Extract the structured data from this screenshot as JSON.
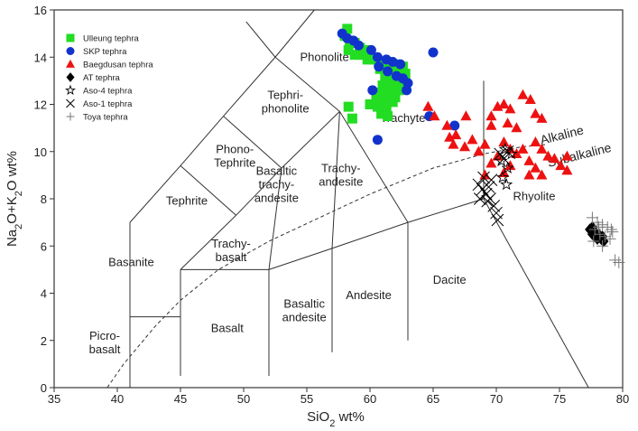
{
  "chart_data": {
    "type": "scatter",
    "title": "",
    "xlabel": "SiO2 wt%",
    "ylabel": "Na2O+K2O wt%",
    "xlim": [
      35,
      80
    ],
    "ylim": [
      0,
      16
    ],
    "xticks": [
      35,
      40,
      45,
      50,
      55,
      60,
      65,
      70,
      75,
      80
    ],
    "yticks": [
      0,
      2,
      4,
      6,
      8,
      10,
      12,
      14,
      16
    ],
    "grid": false,
    "legend_position": "top-left",
    "tas_fields": [
      {
        "name": "picrobasalt",
        "lines": [
          "Picro-",
          "basalt"
        ],
        "x": 39.0,
        "y": 1.9
      },
      {
        "name": "basalt",
        "lines": [
          "Basalt"
        ],
        "x": 48.7,
        "y": 2.5
      },
      {
        "name": "basaltic-andesite",
        "lines": [
          "Basaltic",
          "andesite"
        ],
        "x": 54.8,
        "y": 3.25
      },
      {
        "name": "andesite",
        "lines": [
          "Andesite"
        ],
        "x": 59.9,
        "y": 3.9
      },
      {
        "name": "dacite",
        "lines": [
          "Dacite"
        ],
        "x": 66.3,
        "y": 4.55
      },
      {
        "name": "rhyolite",
        "lines": [
          "Rhyolite"
        ],
        "x": 73.0,
        "y": 8.1
      },
      {
        "name": "basanite",
        "lines": [
          "Basanite"
        ],
        "x": 41.1,
        "y": 5.3
      },
      {
        "name": "trachybasalt",
        "lines": [
          "Trachy-",
          "basalt"
        ],
        "x": 49.0,
        "y": 5.8
      },
      {
        "name": "basaltic-trachyandesite",
        "lines": [
          "Basaltic",
          "trachy-",
          "andesite"
        ],
        "x": 52.6,
        "y": 8.6
      },
      {
        "name": "trachyandesite",
        "lines": [
          "Trachy-",
          "andesite"
        ],
        "x": 57.7,
        "y": 9.0
      },
      {
        "name": "tephrite",
        "lines": [
          "Tephrite"
        ],
        "x": 45.5,
        "y": 7.9
      },
      {
        "name": "phonotephrite",
        "lines": [
          "Phono-",
          "Tephrite"
        ],
        "x": 49.3,
        "y": 9.8
      },
      {
        "name": "tephriphonolite",
        "lines": [
          "Tephri-",
          "phonolite"
        ],
        "x": 53.3,
        "y": 12.1
      },
      {
        "name": "phonolite",
        "lines": [
          "Phonolite"
        ],
        "x": 56.4,
        "y": 14.0
      },
      {
        "name": "trachyte",
        "lines": [
          "Trachyte"
        ],
        "x": 62.6,
        "y": 11.4
      }
    ],
    "boundary_label_alkaline": "Alkaline",
    "boundary_label_subalkaline": "Subalkaline",
    "series": [
      {
        "name": "Ulleung tephra",
        "marker": "square",
        "color": "#22dd22",
        "points": [
          [
            58.2,
            15.2
          ],
          [
            58.0,
            14.9
          ],
          [
            58.4,
            14.7
          ],
          [
            58.8,
            14.6
          ],
          [
            59.2,
            14.4
          ],
          [
            59.6,
            14.3
          ],
          [
            58.3,
            14.3
          ],
          [
            58.8,
            14.1
          ],
          [
            59.4,
            14.1
          ],
          [
            59.8,
            13.9
          ],
          [
            60.2,
            13.9
          ],
          [
            60.7,
            13.8
          ],
          [
            61.3,
            13.8
          ],
          [
            61.9,
            13.7
          ],
          [
            62.3,
            13.6
          ],
          [
            62.6,
            13.6
          ],
          [
            60.8,
            13.5
          ],
          [
            61.5,
            13.4
          ],
          [
            62.2,
            13.3
          ],
          [
            62.8,
            13.3
          ],
          [
            61.2,
            13.1
          ],
          [
            61.8,
            13.0
          ],
          [
            62.5,
            13.0
          ],
          [
            61.0,
            12.8
          ],
          [
            61.6,
            12.7
          ],
          [
            62.3,
            12.6
          ],
          [
            60.8,
            12.5
          ],
          [
            61.4,
            12.4
          ],
          [
            62.0,
            12.3
          ],
          [
            60.5,
            12.2
          ],
          [
            61.1,
            12.1
          ],
          [
            61.8,
            12.1
          ],
          [
            60.0,
            12.0
          ],
          [
            60.6,
            11.9
          ],
          [
            61.3,
            11.8
          ],
          [
            60.9,
            11.6
          ],
          [
            61.4,
            11.5
          ],
          [
            58.3,
            11.9
          ],
          [
            58.6,
            11.4
          ]
        ]
      },
      {
        "name": "SKP tephra",
        "marker": "circle",
        "color": "#1133cc",
        "points": [
          [
            57.8,
            15.0
          ],
          [
            58.2,
            14.8
          ],
          [
            58.7,
            14.7
          ],
          [
            59.1,
            14.5
          ],
          [
            60.1,
            14.3
          ],
          [
            60.6,
            14.0
          ],
          [
            61.3,
            13.9
          ],
          [
            61.8,
            13.8
          ],
          [
            62.4,
            13.7
          ],
          [
            60.7,
            13.6
          ],
          [
            61.4,
            13.4
          ],
          [
            62.1,
            13.2
          ],
          [
            62.6,
            13.1
          ],
          [
            63.0,
            12.9
          ],
          [
            62.9,
            12.6
          ],
          [
            60.2,
            12.6
          ],
          [
            65.0,
            14.2
          ],
          [
            64.7,
            11.5
          ],
          [
            66.7,
            11.1
          ],
          [
            60.6,
            10.5
          ]
        ]
      },
      {
        "name": "Baegdusan tephra",
        "marker": "triangle",
        "color": "#ee1111",
        "points": [
          [
            64.6,
            11.9
          ],
          [
            65.1,
            11.5
          ],
          [
            66.1,
            11.1
          ],
          [
            66.8,
            10.7
          ],
          [
            67.5,
            10.2
          ],
          [
            66.3,
            10.6
          ],
          [
            66.6,
            10.3
          ],
          [
            67.6,
            11.5
          ],
          [
            68.1,
            10.5
          ],
          [
            68.6,
            10.0
          ],
          [
            69.1,
            10.3
          ],
          [
            69.6,
            11.5
          ],
          [
            70.1,
            11.9
          ],
          [
            70.6,
            12.0
          ],
          [
            71.1,
            11.8
          ],
          [
            71.6,
            11.0
          ],
          [
            72.1,
            12.4
          ],
          [
            72.7,
            12.2
          ],
          [
            73.1,
            11.6
          ],
          [
            73.6,
            11.4
          ],
          [
            73.1,
            10.4
          ],
          [
            73.6,
            10.1
          ],
          [
            74.1,
            9.8
          ],
          [
            74.6,
            9.7
          ],
          [
            75.1,
            9.4
          ],
          [
            75.6,
            9.2
          ],
          [
            72.6,
            9.6
          ],
          [
            73.1,
            9.3
          ],
          [
            73.6,
            9.0
          ],
          [
            70.6,
            10.4
          ],
          [
            71.1,
            10.1
          ],
          [
            71.6,
            9.9
          ],
          [
            72.1,
            10.1
          ],
          [
            70.1,
            9.8
          ],
          [
            69.6,
            9.5
          ],
          [
            69.1,
            9.0
          ],
          [
            70.6,
            9.1
          ],
          [
            71.1,
            9.4
          ],
          [
            72.6,
            9.0
          ],
          [
            75.6,
            9.8
          ],
          [
            70.9,
            11.2
          ],
          [
            69.6,
            11.1
          ]
        ]
      },
      {
        "name": "AT tephra",
        "marker": "diamond",
        "color": "#000000",
        "points": [
          [
            77.4,
            6.7
          ],
          [
            77.6,
            6.5
          ],
          [
            77.8,
            6.4
          ],
          [
            78.0,
            6.3
          ],
          [
            78.3,
            6.3
          ],
          [
            78.5,
            6.2
          ],
          [
            77.8,
            6.6
          ],
          [
            78.1,
            6.5
          ],
          [
            77.6,
            6.8
          ],
          [
            78.4,
            6.4
          ]
        ]
      },
      {
        "name": "Aso-4  tephra",
        "marker": "star",
        "color": "#000000",
        "points": [
          [
            70.7,
            10.1
          ],
          [
            70.4,
            9.6
          ],
          [
            70.9,
            9.3
          ],
          [
            71.2,
            9.9
          ],
          [
            70.5,
            8.9
          ],
          [
            70.8,
            8.6
          ]
        ]
      },
      {
        "name": "Aso-1  tephra",
        "marker": "x",
        "color": "#000000",
        "points": [
          [
            68.6,
            8.6
          ],
          [
            68.9,
            8.4
          ],
          [
            69.2,
            8.2
          ],
          [
            69.5,
            8.0
          ],
          [
            69.8,
            7.7
          ],
          [
            69.0,
            8.9
          ],
          [
            69.4,
            8.5
          ],
          [
            68.7,
            8.0
          ],
          [
            69.6,
            8.8
          ],
          [
            70.0,
            7.4
          ],
          [
            70.1,
            7.1
          ],
          [
            69.3,
            7.9
          ],
          [
            70.3,
            9.9
          ],
          [
            70.6,
            9.7
          ],
          [
            70.9,
            10.0
          ]
        ]
      },
      {
        "name": "Toya  tephra",
        "marker": "plus",
        "color": "#777777",
        "points": [
          [
            77.6,
            7.2
          ],
          [
            78.0,
            7.0
          ],
          [
            78.4,
            6.9
          ],
          [
            78.8,
            6.8
          ],
          [
            79.1,
            6.7
          ],
          [
            77.8,
            6.7
          ],
          [
            78.2,
            6.5
          ],
          [
            78.6,
            6.4
          ],
          [
            79.0,
            6.3
          ],
          [
            77.7,
            6.2
          ],
          [
            78.4,
            6.0
          ],
          [
            79.4,
            5.4
          ],
          [
            79.7,
            5.3
          ],
          [
            79.2,
            6.6
          ],
          [
            78.1,
            6.8
          ]
        ]
      }
    ]
  }
}
